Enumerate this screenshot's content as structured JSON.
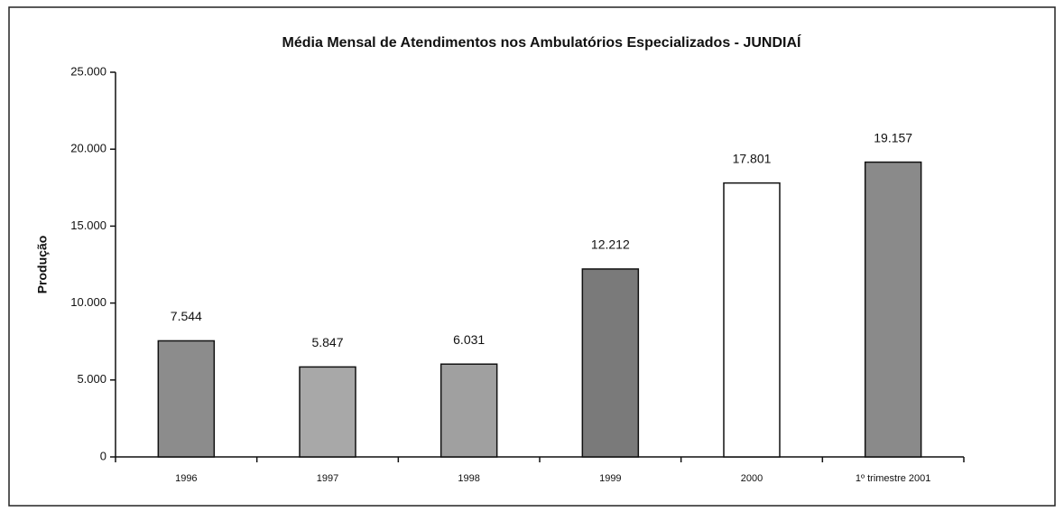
{
  "chart_data": {
    "type": "bar",
    "title": "Média Mensal de Atendimentos nos Ambulatórios Especializados - JUNDIAÍ",
    "y_label": "Produção",
    "categories": [
      "1996",
      "1997",
      "1998",
      "1999",
      "2000",
      "1º trimestre 2001"
    ],
    "values": [
      7544,
      5847,
      6031,
      12212,
      17801,
      19157
    ],
    "value_labels": [
      "7.544",
      "5.847",
      "6.031",
      "12.212",
      "17.801",
      "19.157"
    ],
    "colors": [
      "#8c8c8c",
      "#a8a8a8",
      "#a0a0a0",
      "#7a7a7a",
      "#ffffff",
      "#8a8a8a"
    ],
    "ylim": [
      0,
      25000
    ],
    "yticks": [
      0,
      {
        "value": 5000,
        "label": "5.000"
      },
      {
        "value": 10000,
        "label": "10.000"
      },
      {
        "value": 15000,
        "label": "15.000"
      },
      {
        "value": 20000,
        "label": "20.000"
      },
      {
        "value": 25000,
        "label": "25.000"
      }
    ],
    "grid": false
  }
}
